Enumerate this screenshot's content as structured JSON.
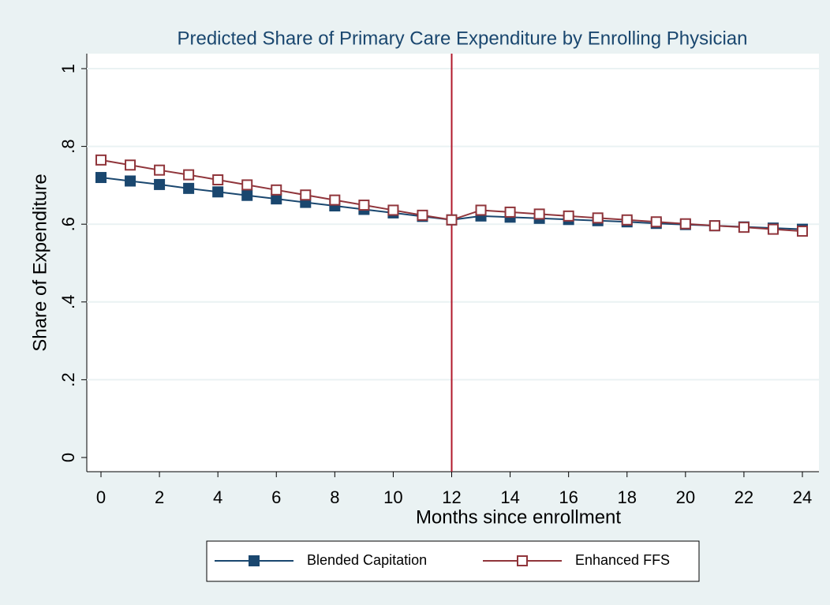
{
  "chart_data": {
    "type": "line",
    "title": "Predicted Share of Primary Care Expenditure by Enrolling Physician",
    "x_label": "Months since enrollment",
    "y_label": "Share of Expenditure",
    "x": [
      0,
      1,
      2,
      3,
      4,
      5,
      6,
      7,
      8,
      9,
      10,
      11,
      12,
      13,
      14,
      15,
      16,
      17,
      18,
      19,
      20,
      21,
      22,
      23,
      24
    ],
    "series": [
      {
        "name": "Blended Capitation",
        "color": "#1a476f",
        "marker": "filled-square",
        "values": [
          0.72,
          0.711,
          0.702,
          0.692,
          0.683,
          0.674,
          0.665,
          0.656,
          0.647,
          0.638,
          0.629,
          0.62,
          0.611,
          0.621,
          0.618,
          0.615,
          0.612,
          0.609,
          0.606,
          0.602,
          0.599,
          0.596,
          0.593,
          0.59,
          0.587
        ]
      },
      {
        "name": "Enhanced FFS",
        "color": "#90353b",
        "marker": "hollow-square",
        "values": [
          0.765,
          0.752,
          0.739,
          0.727,
          0.714,
          0.701,
          0.688,
          0.675,
          0.662,
          0.649,
          0.636,
          0.623,
          0.611,
          0.636,
          0.631,
          0.626,
          0.621,
          0.616,
          0.611,
          0.606,
          0.601,
          0.596,
          0.592,
          0.587,
          0.582
        ]
      }
    ],
    "xline": 12,
    "xline_color": "#b2182b",
    "xlim": [
      0,
      24
    ],
    "xticks": [
      0,
      2,
      4,
      6,
      8,
      10,
      12,
      14,
      16,
      18,
      20,
      22,
      24
    ],
    "ylim": [
      0,
      1
    ],
    "yticks": [
      0,
      {
        "value": 0.2,
        "label": ".2"
      },
      {
        "value": 0.4,
        "label": ".4"
      },
      {
        "value": 0.6,
        "label": ".6"
      },
      {
        "value": 0.8,
        "label": ".8"
      },
      1
    ],
    "grid": true,
    "legend": "bottom"
  }
}
